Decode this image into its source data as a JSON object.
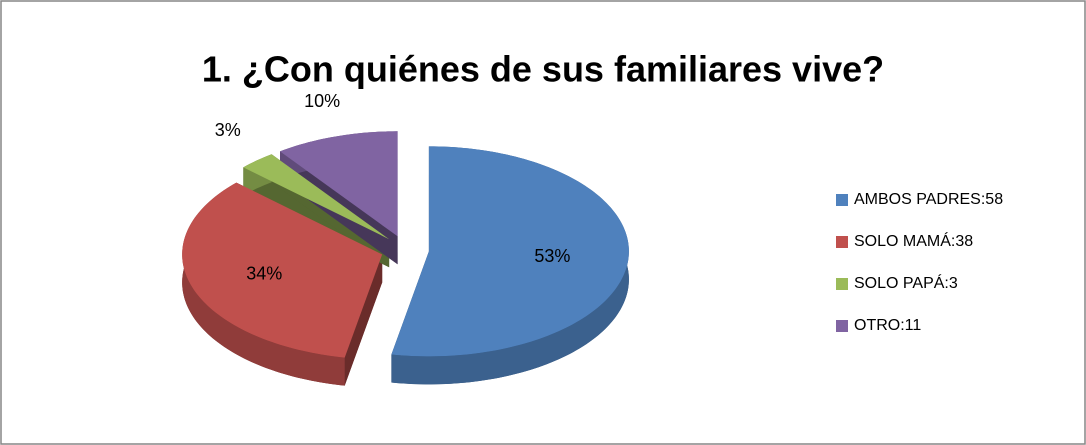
{
  "chart_data": {
    "type": "pie",
    "title": "1. ¿Con quiénes de sus familiares vive?",
    "categories": [
      "AMBOS PADRES:58",
      "SOLO MAMÁ:38",
      "SOLO PAPÁ:3",
      "OTRO:11"
    ],
    "values": [
      53,
      34,
      3,
      10
    ],
    "value_labels": [
      "53%",
      "34%",
      "3%",
      "10%"
    ],
    "colors": [
      "#4f81bd",
      "#c0504d",
      "#9bbb59",
      "#8064a2"
    ],
    "legend": "right"
  }
}
